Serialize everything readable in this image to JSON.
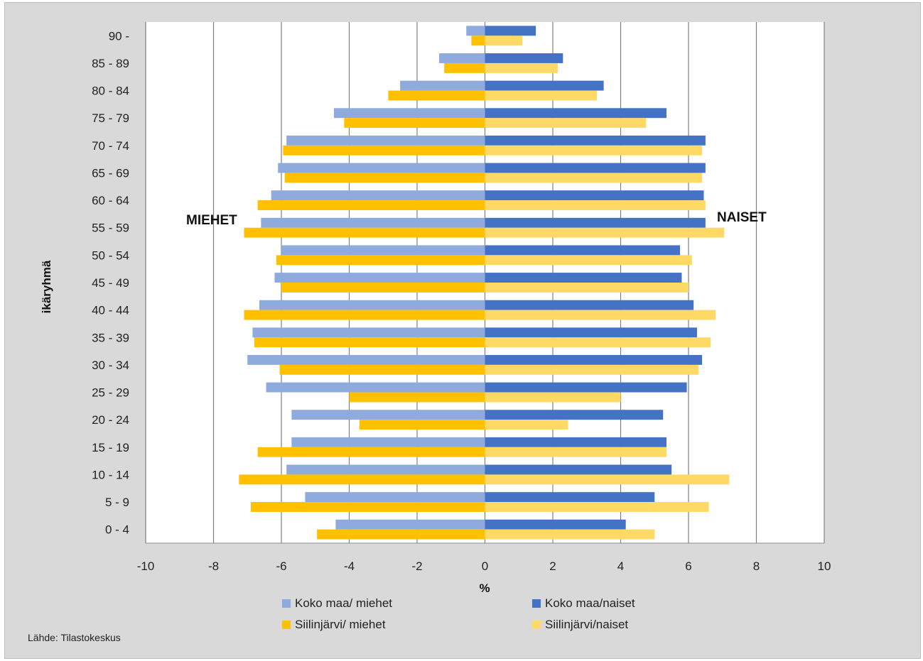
{
  "chart_data": {
    "type": "bar",
    "orientation": "horizontal",
    "xlabel": "%",
    "ylabel": "ikäryhmä",
    "xlim": [
      -10,
      10
    ],
    "xticks": [
      -10,
      -8,
      -6,
      -4,
      -2,
      0,
      2,
      4,
      6,
      8,
      10
    ],
    "grid": true,
    "legend_position": "bottom",
    "categories": [
      "0 - 4",
      "5 - 9",
      "10 - 14",
      "15 - 19",
      "20 - 24",
      "25 - 29",
      "30 - 34",
      "35 - 39",
      "40 - 44",
      "45 - 49",
      "50 - 54",
      "55 - 59",
      "60 - 64",
      "65 - 69",
      "70 - 74",
      "75 - 79",
      "80 - 84",
      "85 - 89",
      "90 -"
    ],
    "series": [
      {
        "name": "Koko maa/ miehet",
        "color": "#8faadc",
        "side": "left",
        "values": [
          -4.4,
          -5.3,
          -5.85,
          -5.7,
          -5.7,
          -6.45,
          -7.0,
          -6.85,
          -6.65,
          -6.2,
          -6.0,
          -6.6,
          -6.3,
          -6.1,
          -5.85,
          -4.45,
          -2.5,
          -1.35,
          -0.55
        ]
      },
      {
        "name": "Siilinjärvi/ miehet",
        "color": "#ffc000",
        "side": "left",
        "values": [
          -4.95,
          -6.9,
          -7.25,
          -6.7,
          -3.7,
          -4.0,
          -6.05,
          -6.8,
          -7.1,
          -6.0,
          -6.15,
          -7.1,
          -6.7,
          -5.9,
          -5.95,
          -4.15,
          -2.85,
          -1.2,
          -0.4
        ]
      },
      {
        "name": "Koko maa/naiset",
        "color": "#4472c4",
        "side": "right",
        "values": [
          4.15,
          5.0,
          5.5,
          5.35,
          5.25,
          5.95,
          6.4,
          6.25,
          6.15,
          5.8,
          5.75,
          6.5,
          6.45,
          6.5,
          6.5,
          5.35,
          3.5,
          2.3,
          1.5
        ]
      },
      {
        "name": "Siilinjärvi/naiset",
        "color": "#ffd966",
        "side": "right",
        "values": [
          5.0,
          6.6,
          7.2,
          5.35,
          2.45,
          4.0,
          6.3,
          6.65,
          6.8,
          6.0,
          6.1,
          7.05,
          6.5,
          6.4,
          6.4,
          4.75,
          3.3,
          2.15,
          1.1
        ]
      }
    ],
    "annotations": {
      "left": "MIEHET",
      "right": "NAISET"
    },
    "source": "Lähde: Tilastokeskus"
  }
}
